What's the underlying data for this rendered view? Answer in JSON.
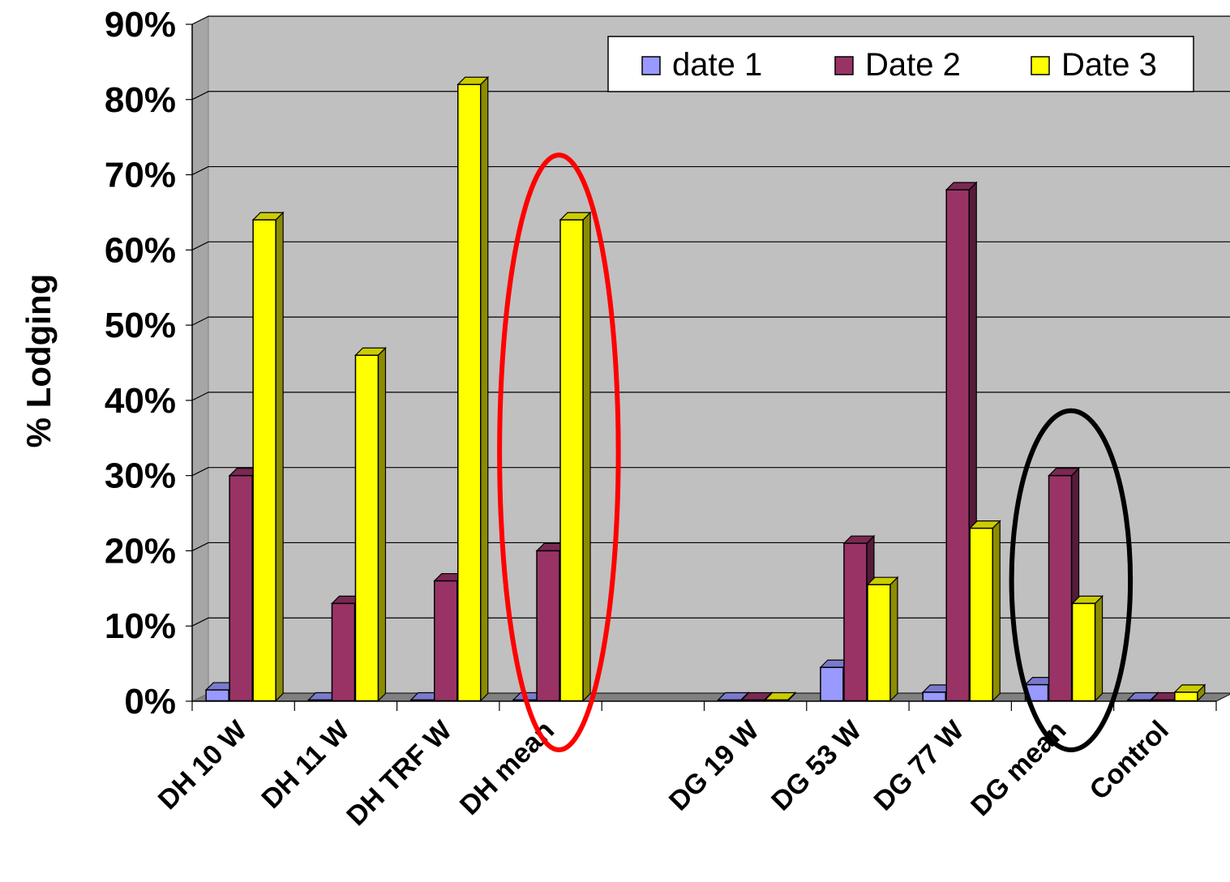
{
  "chart_data": {
    "type": "bar",
    "ylabel": "% Lodging",
    "xlabel": "",
    "ylim": [
      0,
      90
    ],
    "yticks": [
      "0%",
      "10%",
      "20%",
      "30%",
      "40%",
      "50%",
      "60%",
      "70%",
      "80%",
      "90%"
    ],
    "categories": [
      "DH 10 W",
      "DH 11 W",
      "DH TRF W",
      "DH mean",
      "",
      "DG 19 W",
      "DG 53 W",
      "DG 77 W",
      "DG mean",
      "Control"
    ],
    "series": [
      {
        "name": "date 1",
        "color": "#9999ff",
        "values": [
          1.5,
          0,
          0,
          0,
          null,
          0,
          4.5,
          1.2,
          2.2,
          0
        ]
      },
      {
        "name": "Date 2",
        "color": "#993366",
        "values": [
          30,
          13,
          16,
          20,
          null,
          0,
          21,
          68,
          30,
          0
        ]
      },
      {
        "name": "Date 3",
        "color": "#ffff00",
        "values": [
          64,
          46,
          82,
          64,
          null,
          0,
          15.5,
          23,
          13,
          1.2
        ]
      }
    ],
    "legend_position": "top-right",
    "grid": true,
    "style": "3d",
    "annotations": [
      {
        "shape": "ellipse",
        "color": "#ff0000",
        "around": "DH mean"
      },
      {
        "shape": "ellipse",
        "color": "#000000",
        "around": "DG mean"
      }
    ]
  }
}
